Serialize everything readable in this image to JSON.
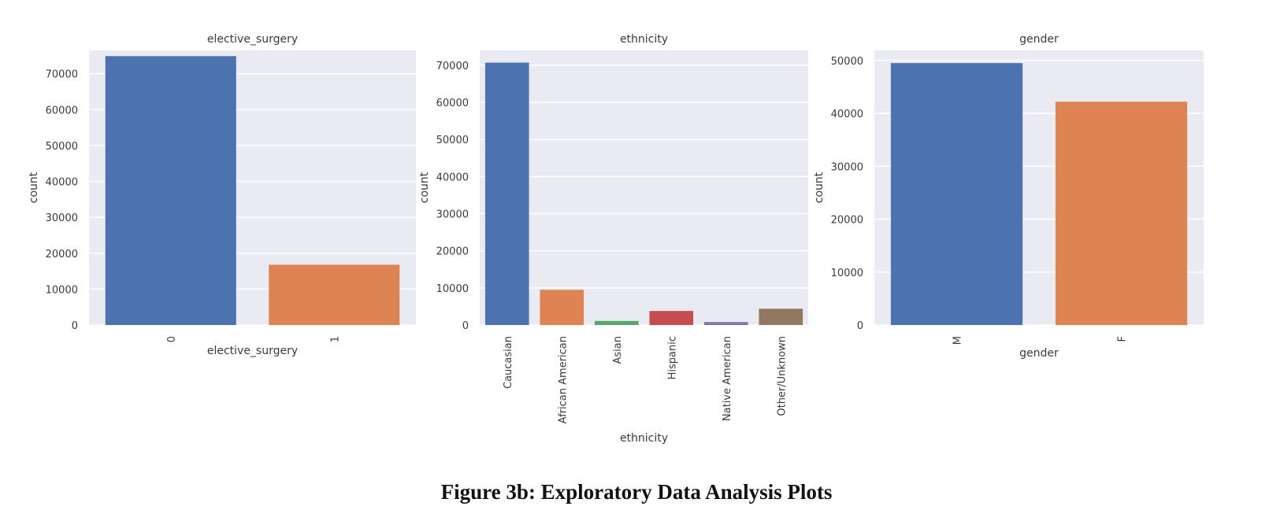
{
  "caption": "Figure 3b: Exploratory Data Analysis Plots",
  "style": {
    "plot_background": "#eaeaf2",
    "grid_color": "#ffffff",
    "tick_text_color": "#3a3a3a",
    "palette": [
      "#4c72b0",
      "#dd8452",
      "#55a868",
      "#c44e52",
      "#8172b3",
      "#937860"
    ]
  },
  "chart_data": [
    {
      "type": "bar",
      "title": "elective_surgery",
      "xlabel": "elective_surgery",
      "ylabel": "count",
      "categories": [
        "0",
        "1"
      ],
      "values": [
        74900,
        16800
      ],
      "ylim": [
        0,
        76500
      ],
      "yticks": [
        0,
        10000,
        20000,
        30000,
        40000,
        50000,
        60000,
        70000
      ],
      "ytick_labels": [
        "0",
        "10000",
        "20000",
        "30000",
        "40000",
        "50000",
        "60000",
        "70000"
      ],
      "grid": true,
      "xtick_rotation": "vertical"
    },
    {
      "type": "bar",
      "title": "ethnicity",
      "xlabel": "ethnicity",
      "ylabel": "count",
      "categories": [
        "Caucasian",
        "African American",
        "Asian",
        "Hispanic",
        "Native American",
        "Other/Unknown"
      ],
      "values": [
        70700,
        9500,
        1100,
        3800,
        800,
        4400
      ],
      "ylim": [
        0,
        74000
      ],
      "yticks": [
        0,
        10000,
        20000,
        30000,
        40000,
        50000,
        60000,
        70000
      ],
      "ytick_labels": [
        "0",
        "10000",
        "20000",
        "30000",
        "40000",
        "50000",
        "60000",
        "70000"
      ],
      "grid": true,
      "xtick_rotation": "vertical"
    },
    {
      "type": "bar",
      "title": "gender",
      "xlabel": "gender",
      "ylabel": "count",
      "categories": [
        "M",
        "F"
      ],
      "values": [
        49500,
        42200
      ],
      "ylim": [
        0,
        51900
      ],
      "yticks": [
        0,
        10000,
        20000,
        30000,
        40000,
        50000
      ],
      "ytick_labels": [
        "0",
        "10000",
        "20000",
        "30000",
        "40000",
        "50000"
      ],
      "grid": true,
      "xtick_rotation": "vertical"
    }
  ]
}
